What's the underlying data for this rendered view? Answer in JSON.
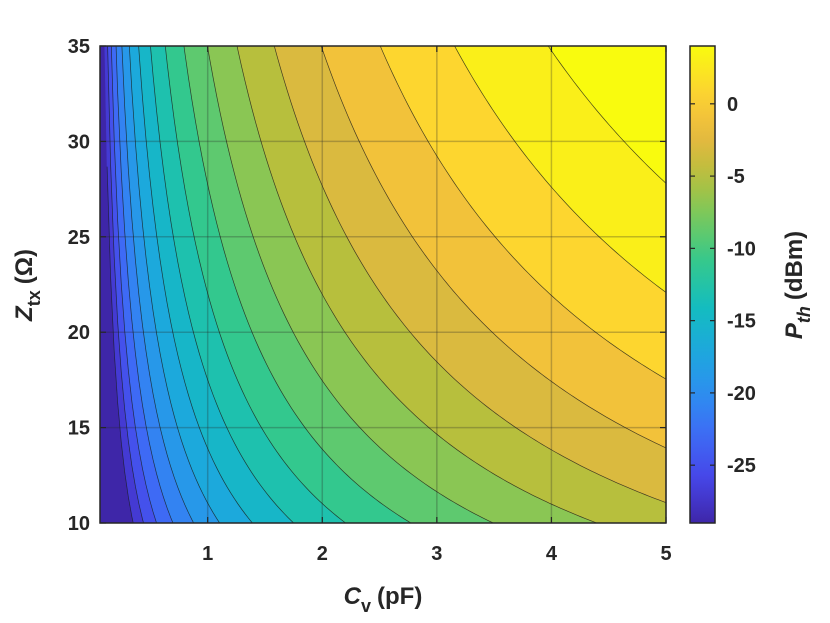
{
  "chart_data": {
    "type": "contour",
    "xlabel": {
      "main": "C",
      "sub": "v",
      "unit": "(pF)"
    },
    "ylabel": {
      "main": "Z",
      "sub": "tx",
      "unit": "(Ω)"
    },
    "colorbar_label": {
      "main": "P",
      "sub": "th",
      "unit": "(dBm)"
    },
    "xlim": [
      0.06,
      5
    ],
    "ylim": [
      10,
      35
    ],
    "x_ticks": [
      1,
      2,
      3,
      4,
      5
    ],
    "y_ticks": [
      10,
      15,
      20,
      25,
      30,
      35
    ],
    "clim": [
      -29,
      4
    ],
    "colorbar_ticks": [
      0,
      -5,
      -10,
      -15,
      -20,
      -25
    ],
    "grid": true,
    "colormap": "parula",
    "contour_levels": [
      -28,
      -26,
      -24,
      -22,
      -20,
      -18,
      -16,
      -14,
      -12,
      -10,
      -8,
      -6,
      -4,
      -2,
      0,
      2,
      4
    ],
    "model": "P_th = 10*log10(C_v^2 * Z_tx^2) + 6 - 10*log10(25*1225)",
    "colormap_stops": [
      "#3e26a8",
      "#4744e8",
      "#3e6af5",
      "#2d8ff0",
      "#1ca9dc",
      "#14bdbe",
      "#33c88e",
      "#73c95f",
      "#b7bf3d",
      "#ecb840",
      "#fdd62f",
      "#f9fb0e"
    ]
  }
}
